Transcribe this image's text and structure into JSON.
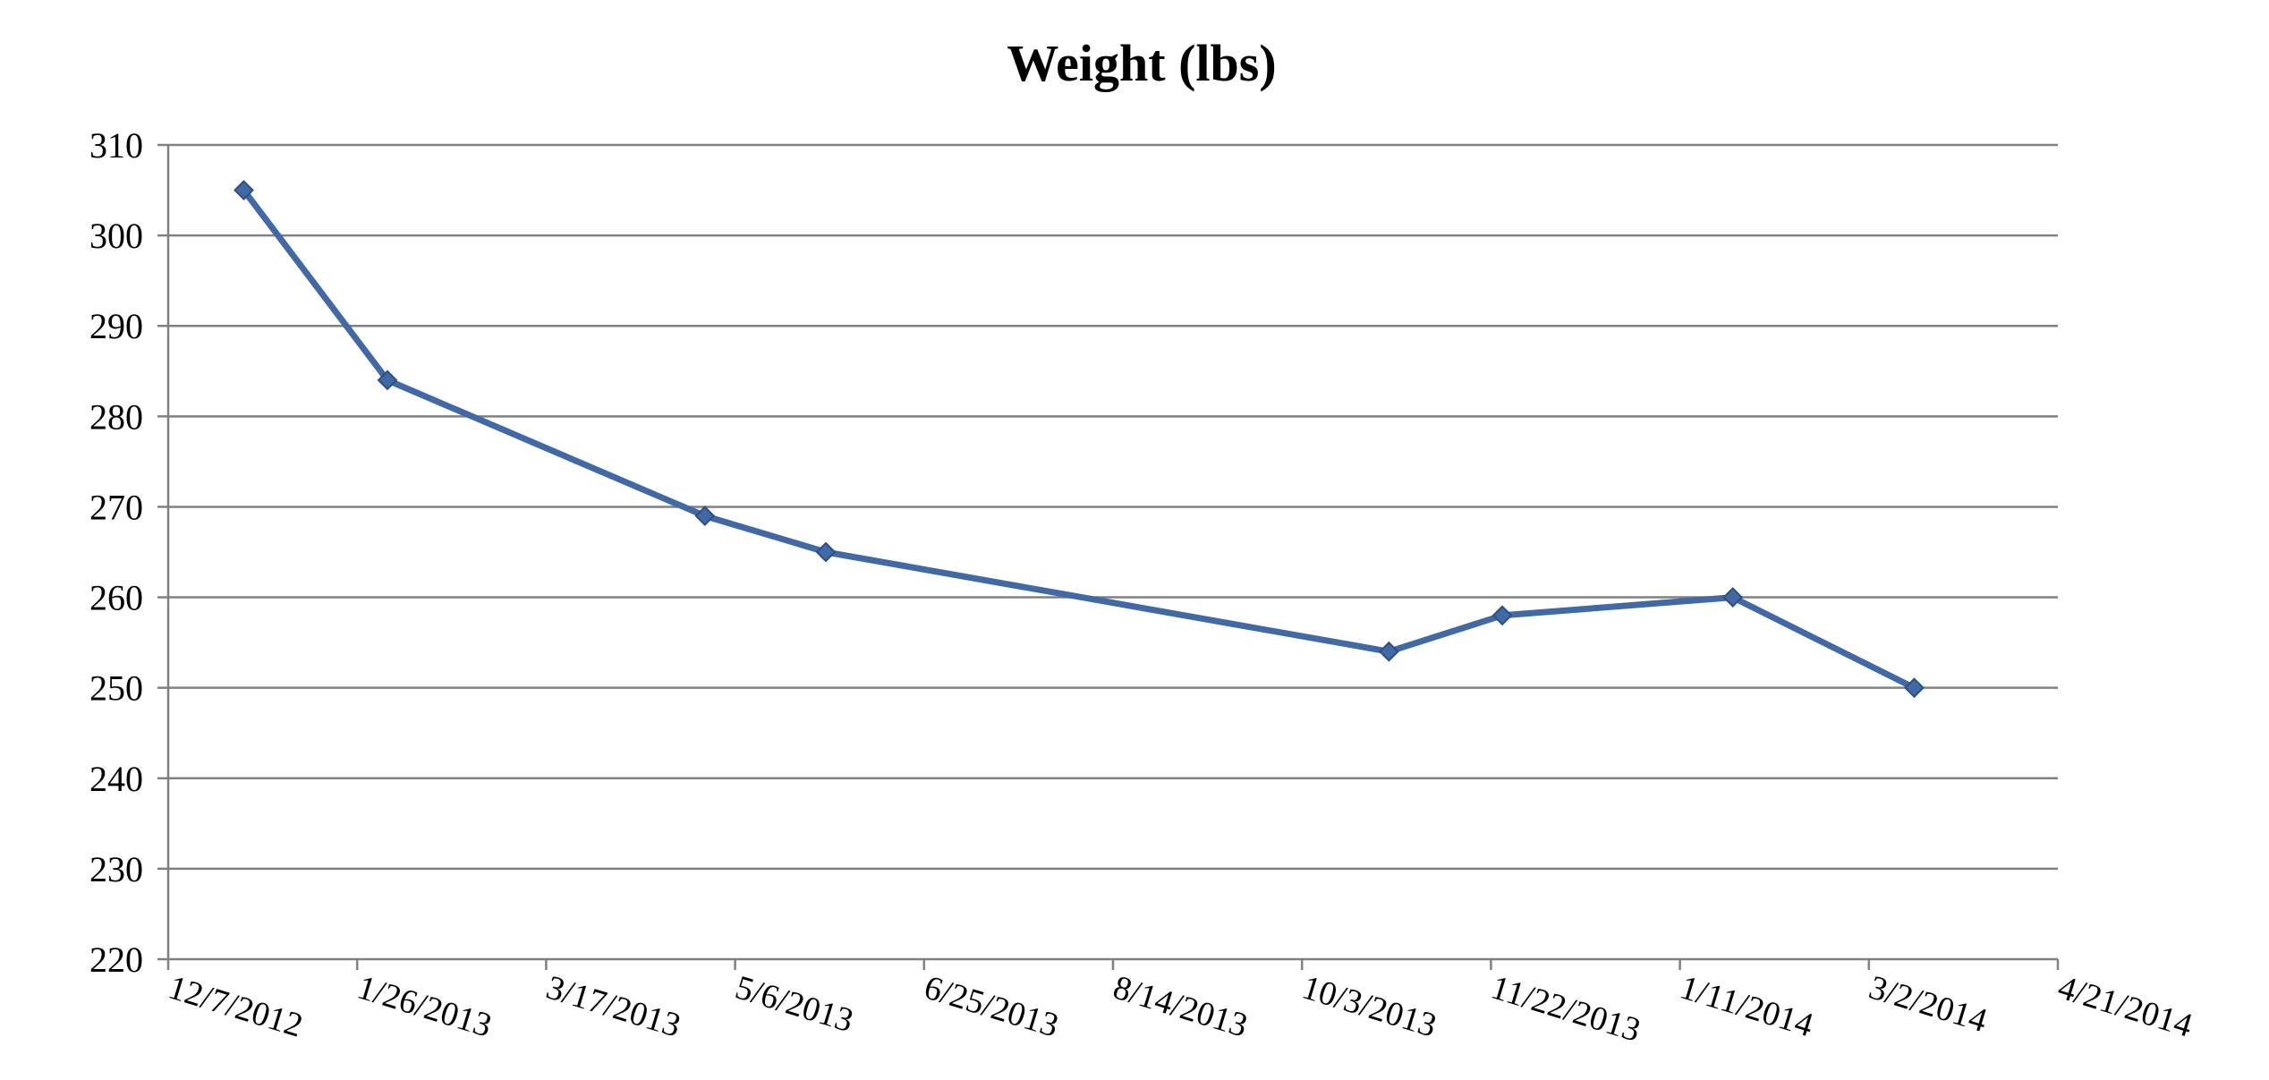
{
  "chart_data": {
    "type": "line",
    "title": "Weight (lbs)",
    "xlabel": "",
    "ylabel": "",
    "x_axis_kind": "date",
    "xlim": [
      "2012-12-07",
      "2014-04-21"
    ],
    "ylim": [
      220,
      310
    ],
    "y_ticks": [
      220,
      230,
      240,
      250,
      260,
      270,
      280,
      290,
      300,
      310
    ],
    "x_ticks": [
      {
        "date": "2012-12-07",
        "label": "12/7/2012"
      },
      {
        "date": "2013-01-26",
        "label": "1/26/2013"
      },
      {
        "date": "2013-03-17",
        "label": "3/17/2013"
      },
      {
        "date": "2013-05-06",
        "label": "5/6/2013"
      },
      {
        "date": "2013-06-25",
        "label": "6/25/2013"
      },
      {
        "date": "2013-08-14",
        "label": "8/14/2013"
      },
      {
        "date": "2013-10-03",
        "label": "10/3/2013"
      },
      {
        "date": "2013-11-22",
        "label": "11/22/2013"
      },
      {
        "date": "2014-01-11",
        "label": "1/11/2014"
      },
      {
        "date": "2014-03-02",
        "label": "3/2/2014"
      },
      {
        "date": "2014-04-21",
        "label": "4/21/2014"
      }
    ],
    "grid": {
      "horizontal": true,
      "vertical": false
    },
    "legend": "none",
    "series": [
      {
        "color": "#4169a6",
        "marker": "diamond",
        "points": [
          {
            "x": "2012-12-27",
            "y": 305
          },
          {
            "x": "2013-02-03",
            "y": 284
          },
          {
            "x": "2013-04-28",
            "y": 269
          },
          {
            "x": "2013-05-30",
            "y": 265
          },
          {
            "x": "2013-10-26",
            "y": 254
          },
          {
            "x": "2013-11-25",
            "y": 258
          },
          {
            "x": "2014-01-25",
            "y": 260
          },
          {
            "x": "2014-03-14",
            "y": 250
          }
        ]
      }
    ]
  },
  "colors": {
    "gridline": "#808080",
    "axis": "#808080",
    "series": "#4169a6",
    "marker_outline": "#2b4f85"
  }
}
